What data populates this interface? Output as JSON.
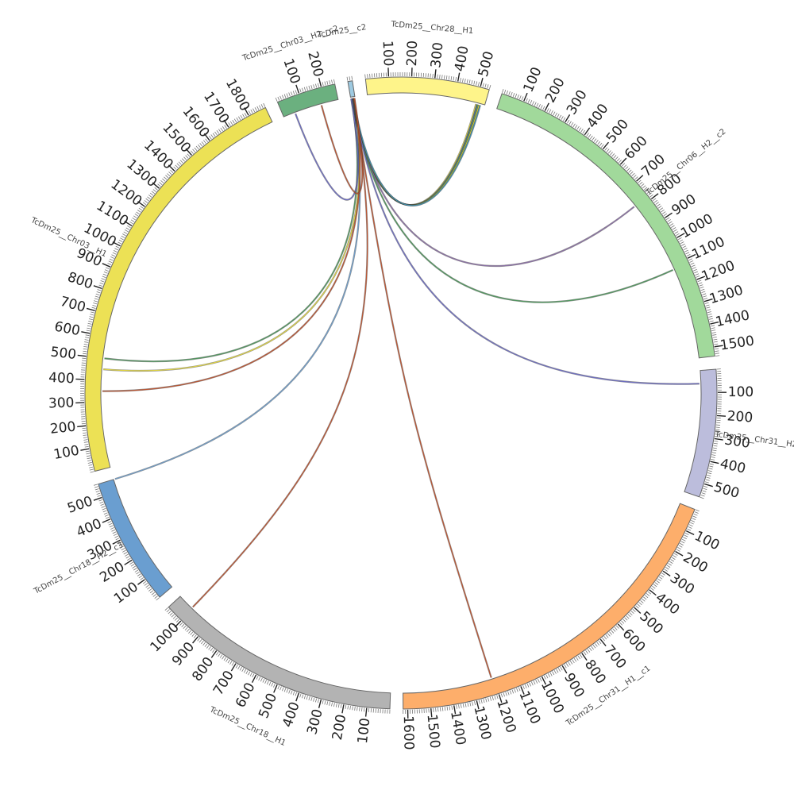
{
  "chart_data": {
    "type": "chord",
    "title": "",
    "segments": [
      {
        "id": "TcDm25_Chr03_H2_c2",
        "label": "TcDm25__Chr03__H2__c2",
        "length": 260,
        "color": "#6bb07f",
        "ticks": [
          100,
          200
        ]
      },
      {
        "id": "TcDm25_c2",
        "label": "TcDm25__c2",
        "length": 20,
        "color": "#9ecae1",
        "ticks": []
      },
      {
        "id": "TcDm25_Chr28_H1",
        "label": "TcDm25__Chr28__H1",
        "length": 540,
        "color": "#fef48a",
        "ticks": [
          100,
          200,
          300,
          400,
          500
        ]
      },
      {
        "id": "TcDm25_Chr06_H2_c2",
        "label": "TcDm25__Chr06__H2__c2",
        "length": 1540,
        "color": "#a1d99b",
        "ticks": [
          100,
          200,
          300,
          400,
          500,
          600,
          700,
          800,
          900,
          1000,
          1100,
          1200,
          1300,
          1400,
          1500
        ]
      },
      {
        "id": "TcDm25_Chr31_H2_c3",
        "label": "TcDm25__Chr31__H2__c3",
        "length": 560,
        "color": "#bcbddc",
        "ticks": [
          100,
          200,
          300,
          400,
          500
        ]
      },
      {
        "id": "TcDm25_Chr31_H1_c1",
        "label": "TcDm25__Chr31__H1__c1",
        "length": 1620,
        "color": "#fdae6b",
        "ticks": [
          100,
          200,
          300,
          400,
          500,
          600,
          700,
          800,
          900,
          1000,
          1100,
          1200,
          1300,
          1400,
          1500,
          1600
        ]
      },
      {
        "id": "TcDm25_Chr18_H1",
        "label": "TcDm25__Chr18__H1",
        "length": 1080,
        "color": "#b3b3b3",
        "ticks": [
          100,
          200,
          300,
          400,
          500,
          600,
          700,
          800,
          900,
          1000
        ]
      },
      {
        "id": "TcDm25_Chr18_H2_c3",
        "label": "TcDm25__Chr18__H2__c3",
        "length": 560,
        "color": "#6a9ed0",
        "ticks": [
          100,
          200,
          300,
          400,
          500
        ]
      },
      {
        "id": "TcDm25_Chr03_H1",
        "label": "TcDm25__Chr03__H1",
        "length": 1880,
        "color": "#ece155",
        "ticks": [
          100,
          200,
          300,
          400,
          500,
          600,
          700,
          800,
          900,
          1000,
          1100,
          1200,
          1300,
          1400,
          1500,
          1600,
          1700,
          1800
        ]
      }
    ],
    "links": [
      {
        "from": "TcDm25_c2",
        "from_pos": 5,
        "to": "TcDm25_Chr28_H1",
        "to_pos": 500,
        "color": "#e6d93a"
      },
      {
        "from": "TcDm25_c2",
        "from_pos": 7,
        "to": "TcDm25_Chr28_H1",
        "to_pos": 505,
        "color": "#4c72b0"
      },
      {
        "from": "TcDm25_c2",
        "from_pos": 9,
        "to": "TcDm25_Chr28_H1",
        "to_pos": 510,
        "color": "#6aa84f"
      },
      {
        "from": "TcDm25_c2",
        "from_pos": 11,
        "to": "TcDm25_Chr28_H1",
        "to_pos": 515,
        "color": "#e6d93a"
      },
      {
        "from": "TcDm25_c2",
        "from_pos": 13,
        "to": "TcDm25_Chr28_H1",
        "to_pos": 520,
        "color": "#3a8fb7"
      },
      {
        "from": "TcDm25_c2",
        "from_pos": 6,
        "to": "TcDm25_Chr06_H2_c2",
        "to_pos": 780,
        "color": "#8a6ba8"
      },
      {
        "from": "TcDm25_c2",
        "from_pos": 8,
        "to": "TcDm25_Chr06_H2_c2",
        "to_pos": 1120,
        "color": "#4a9a5a"
      },
      {
        "from": "TcDm25_c2",
        "from_pos": 10,
        "to": "TcDm25_Chr31_H2_c3",
        "to_pos": 60,
        "color": "#6a6ac8"
      },
      {
        "from": "TcDm25_c2",
        "from_pos": 12,
        "to": "TcDm25_Chr31_H1_c1",
        "to_pos": 1210,
        "color": "#c0502a"
      },
      {
        "from": "TcDm25_c2",
        "from_pos": 14,
        "to": "TcDm25_Chr18_H1",
        "to_pos": 1005,
        "color": "#c0502a"
      },
      {
        "from": "TcDm25_c2",
        "from_pos": 4,
        "to": "TcDm25_Chr18_H2_c3",
        "to_pos": 560,
        "color": "#6a9ed0"
      },
      {
        "from": "TcDm25_c2",
        "from_pos": 3,
        "to": "TcDm25_Chr03_H1",
        "to_pos": 500,
        "color": "#4a9a5a"
      },
      {
        "from": "TcDm25_c2",
        "from_pos": 15,
        "to": "TcDm25_Chr03_H1",
        "to_pos": 450,
        "color": "#e6d93a"
      },
      {
        "from": "TcDm25_c2",
        "from_pos": 16,
        "to": "TcDm25_Chr03_H1",
        "to_pos": 350,
        "color": "#c0502a"
      },
      {
        "from": "TcDm25_c2",
        "from_pos": 2,
        "to": "TcDm25_Chr03_H2_c2",
        "to_pos": 55,
        "color": "#6a6ac8"
      },
      {
        "from": "TcDm25_c2",
        "from_pos": 17,
        "to": "TcDm25_Chr03_H2_c2",
        "to_pos": 180,
        "color": "#c0502a"
      }
    ]
  }
}
